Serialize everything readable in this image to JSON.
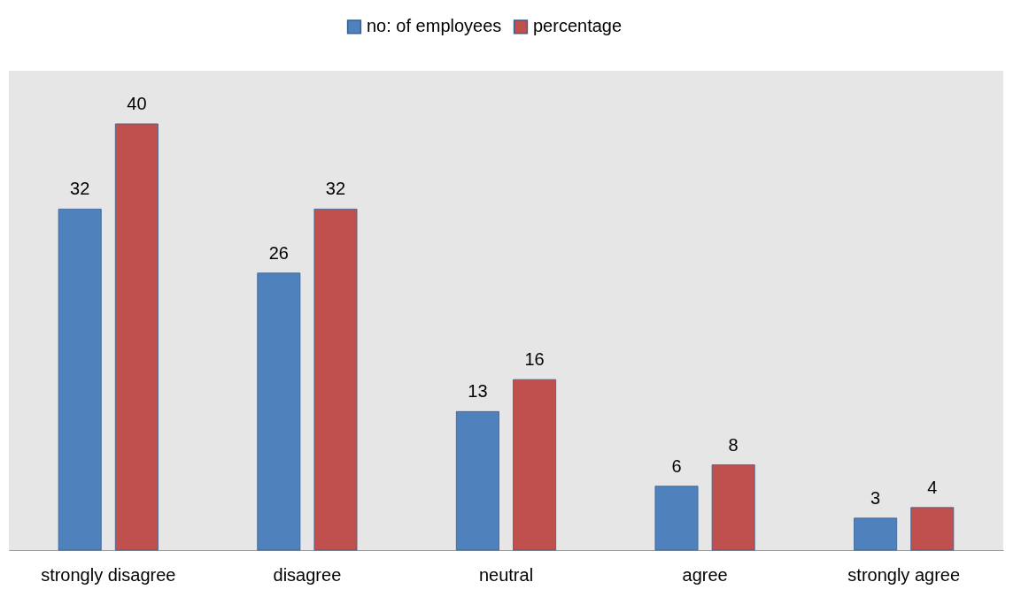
{
  "chart_data": {
    "type": "bar",
    "categories": [
      "strongly disagree",
      "disagree",
      "neutral",
      "agree",
      "strongly agree"
    ],
    "series": [
      {
        "name": "no: of employees",
        "color": "#4f81bd",
        "values": [
          32,
          26,
          13,
          6,
          3
        ]
      },
      {
        "name": "percentage",
        "color": "#c0504d",
        "values": [
          40,
          32,
          16,
          8,
          4
        ]
      }
    ],
    "data_labels": true,
    "legend": "top",
    "grid": false
  }
}
